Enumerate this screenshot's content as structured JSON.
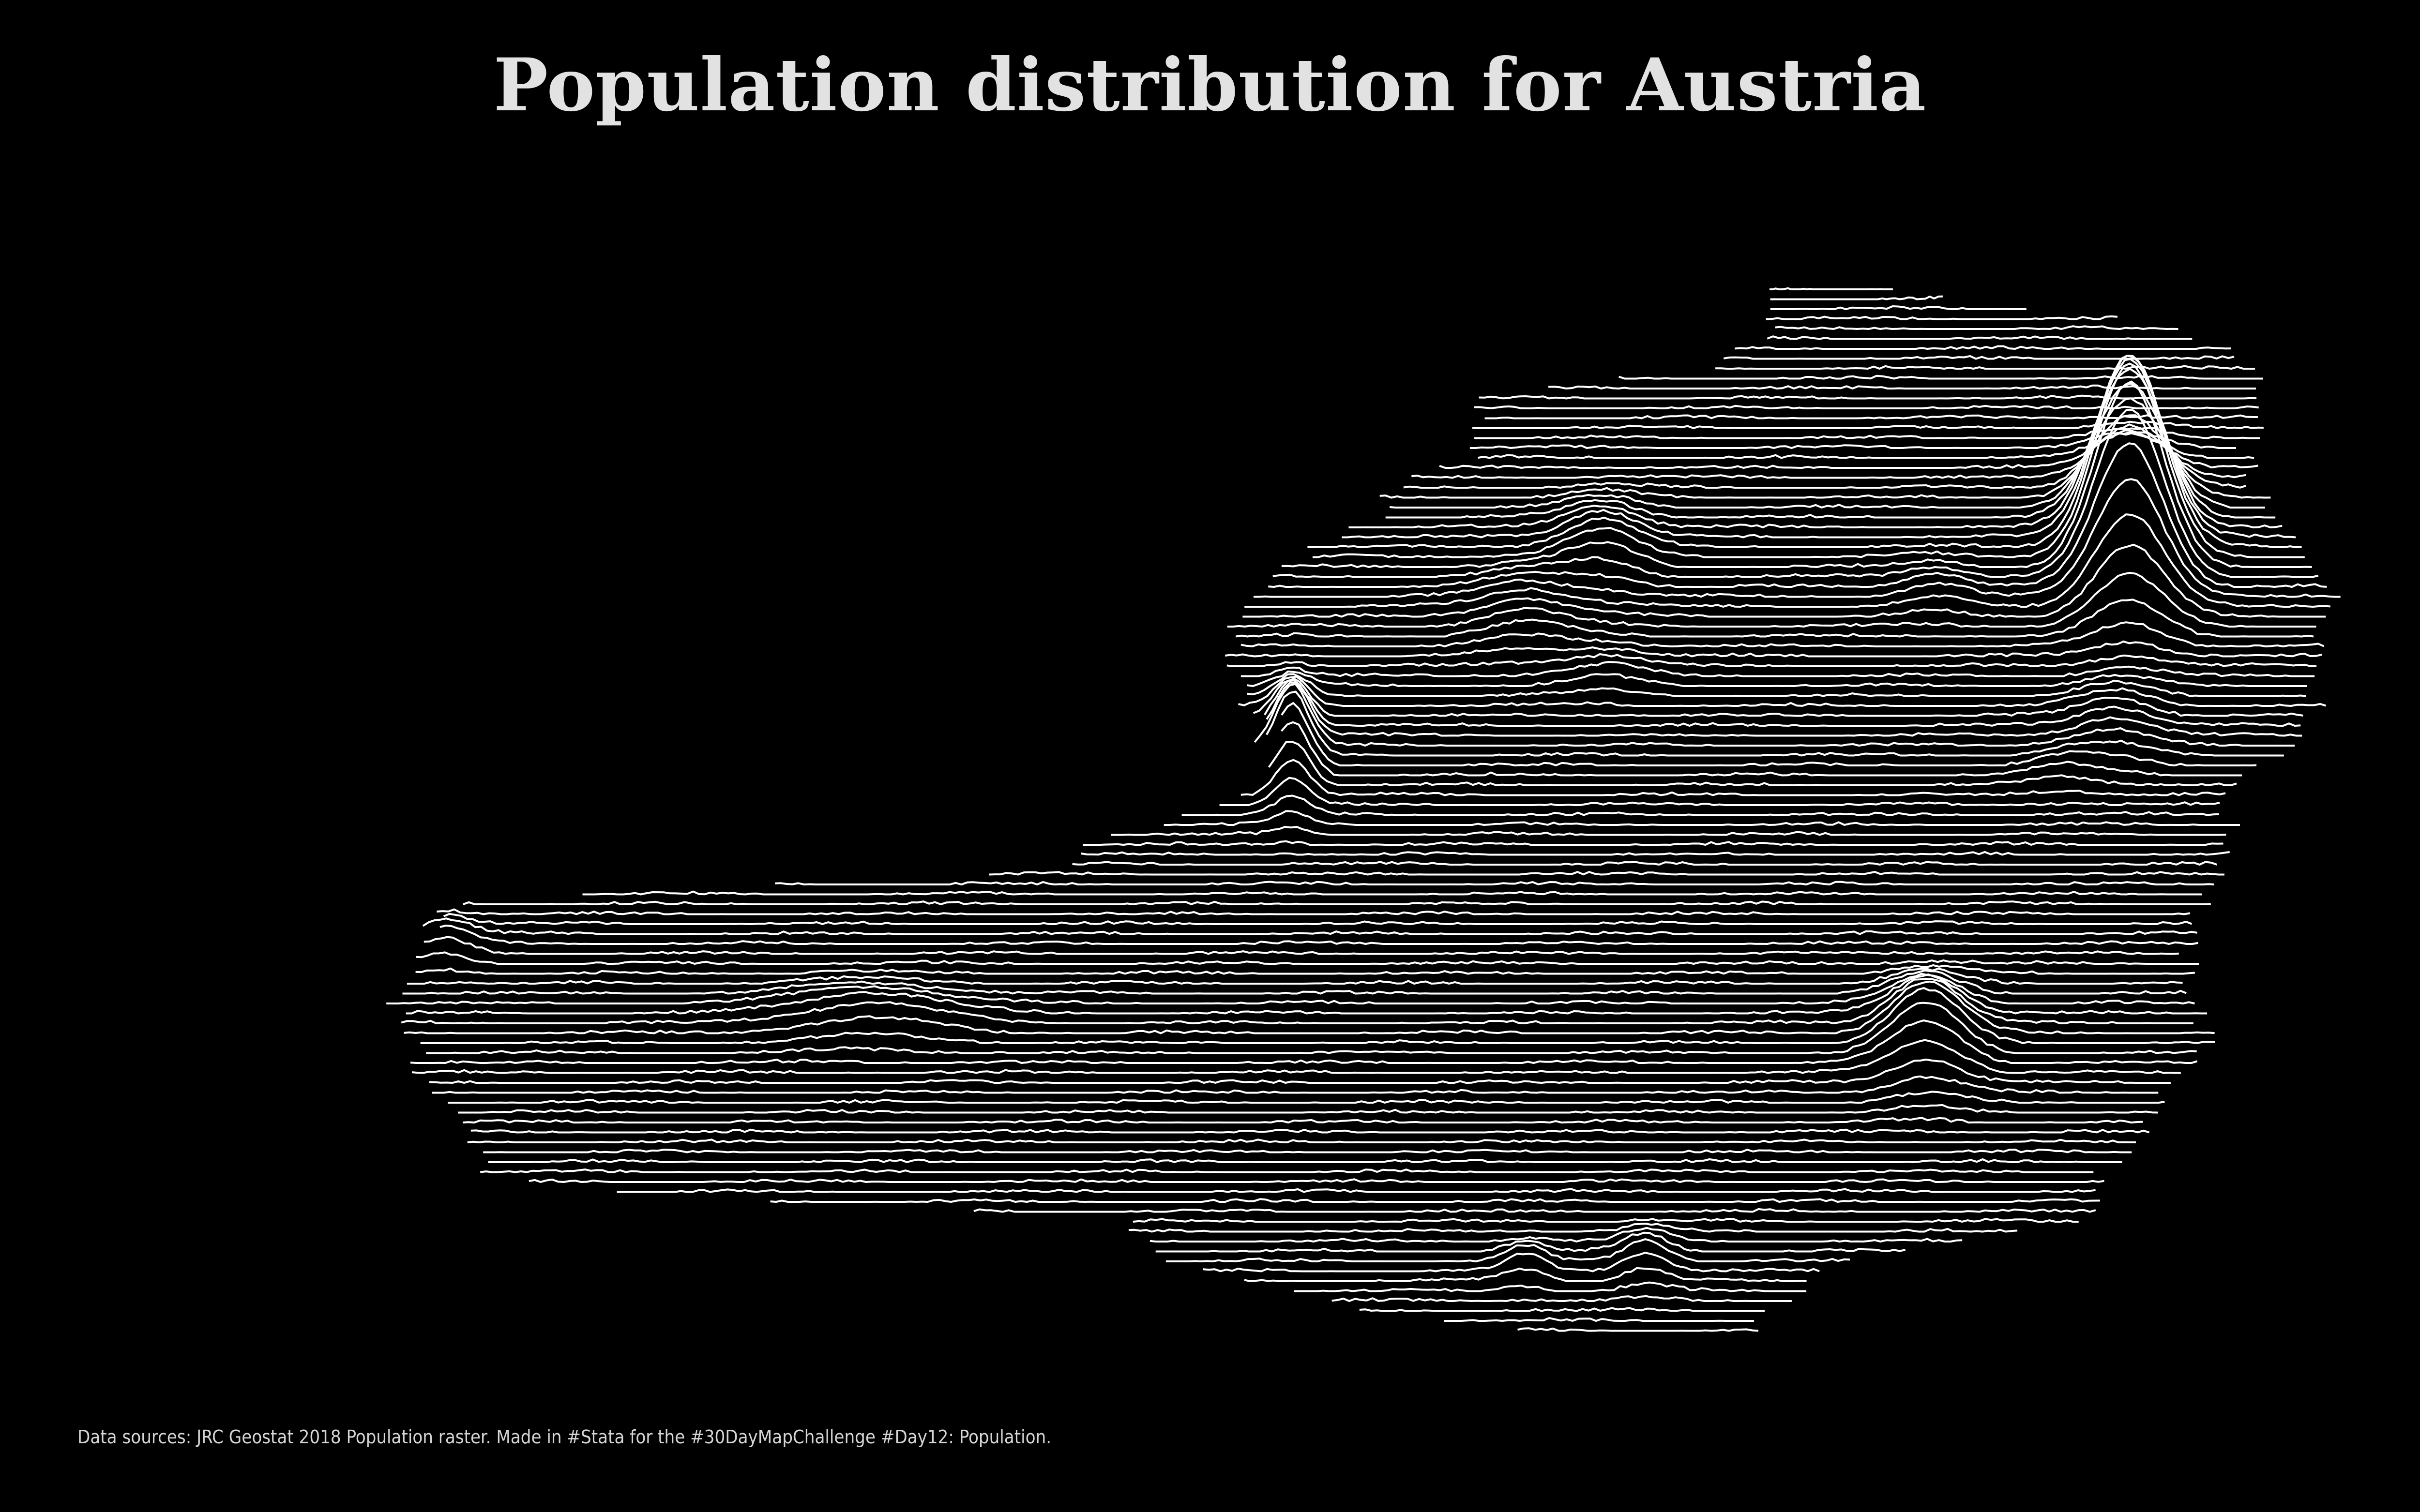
{
  "title": "Population distribution for Austria",
  "caption": "Data sources: JRC Geostat 2018 Population raster. Made in #Stata for the #30DayMapChallenge #Day12: Population.",
  "colors": {
    "background": "#000000",
    "line": "#ffffff",
    "title": "#e2e2e2",
    "caption": "#d6d6d6"
  },
  "map_type": "ridgeline population density (joy plot)",
  "region": "Austria"
}
